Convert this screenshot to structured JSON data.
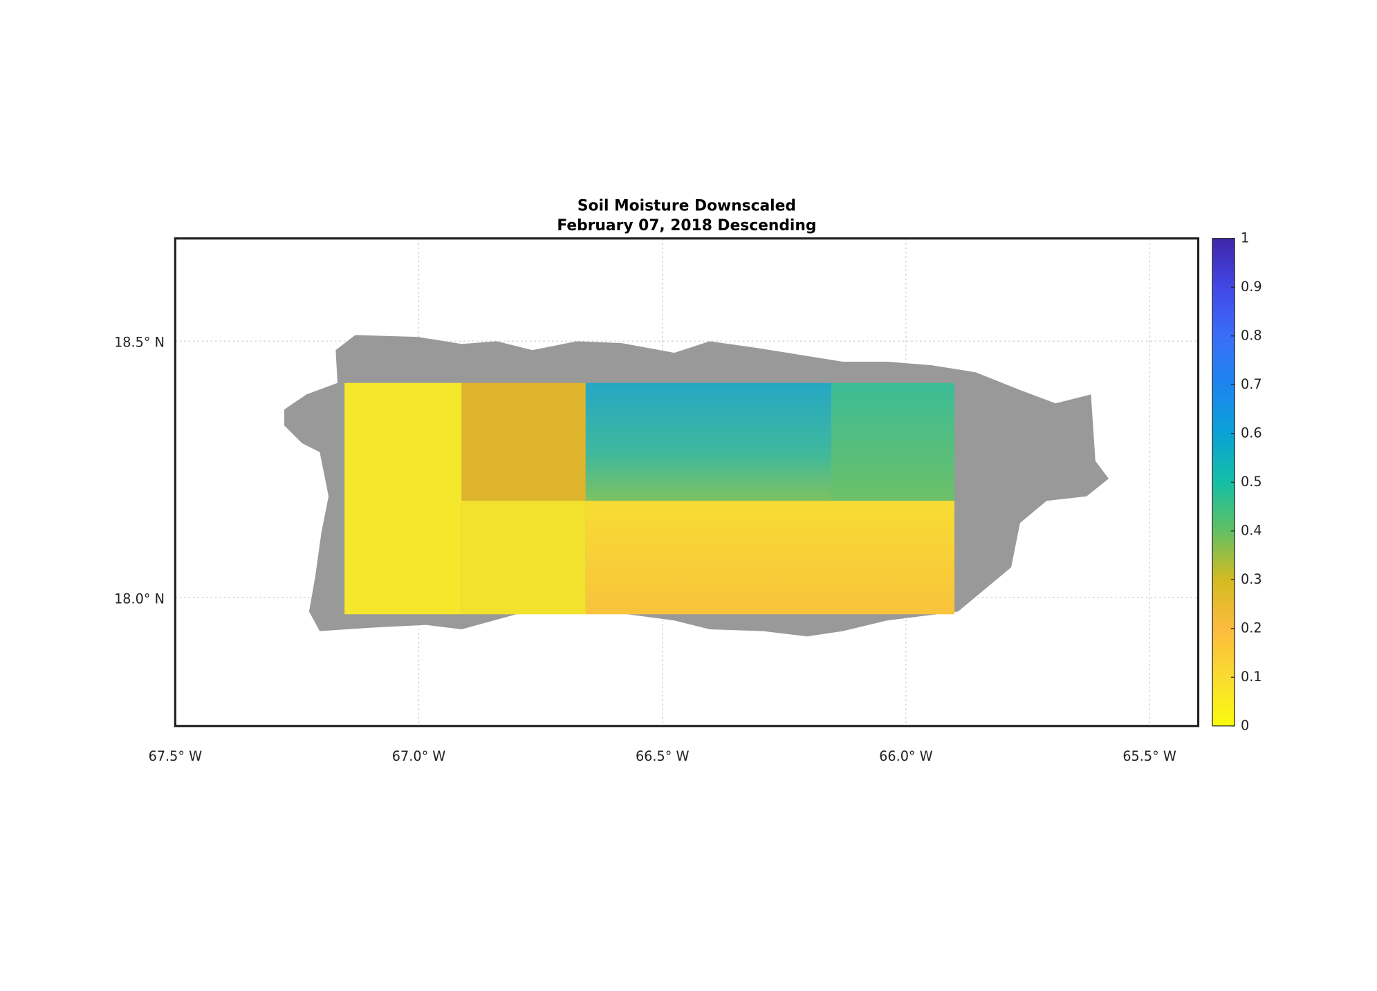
{
  "chart_data": {
    "type": "map",
    "title": "Soil Moisture Downscaled",
    "subtitle": "February 07, 2018 Descending",
    "xlim": [
      -67.5,
      -65.4
    ],
    "ylim": [
      17.75,
      18.7
    ],
    "xticks": [
      {
        "value": -67.5,
        "label": "67.5° W"
      },
      {
        "value": -67.0,
        "label": "67.0° W"
      },
      {
        "value": -66.5,
        "label": "66.5° W"
      },
      {
        "value": -66.0,
        "label": "66.0° W"
      },
      {
        "value": -65.5,
        "label": "65.5° W"
      }
    ],
    "yticks": [
      {
        "value": 18.0,
        "label": "18.0° N"
      },
      {
        "value": 18.5,
        "label": "18.5° N"
      }
    ],
    "grid": true,
    "colorbar": {
      "lim": [
        0,
        1
      ],
      "ticks": [
        0,
        0.1,
        0.2,
        0.3,
        0.4,
        0.5,
        0.6,
        0.7,
        0.8,
        0.9,
        1
      ]
    }
  }
}
